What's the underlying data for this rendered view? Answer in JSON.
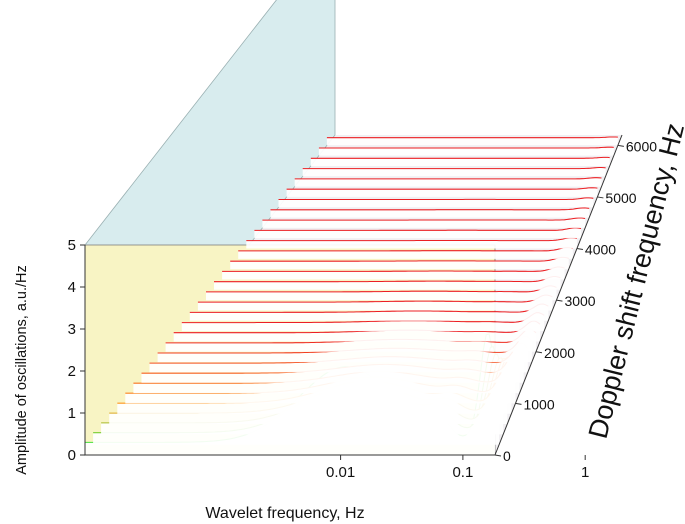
{
  "chart_data": {
    "type": "area",
    "projection": "3d-waterfall",
    "xlabel": "Wavelet frequency, Hz",
    "ylabel": "Amplitude of oscillations, a.u./Hz",
    "zlabel": "Doppler shift frequency, Hz",
    "x_scale": "log",
    "x_ticks": [
      "0.01",
      "0.1",
      "1"
    ],
    "y_ticks": [
      "0",
      "1",
      "2",
      "3",
      "4",
      "5"
    ],
    "z_ticks": [
      "0",
      "1000",
      "2000",
      "3000",
      "4000",
      "5000",
      "6000"
    ],
    "xlim": [
      0.009,
      2
    ],
    "ylim": [
      0,
      5
    ],
    "zlim": [
      0,
      6200
    ],
    "grid": false,
    "series_step_hz": 200,
    "series_count": 31,
    "colors": {
      "back_wall": "#f8f4c4",
      "side_wall": "#d8ecee",
      "floor": "#f1eff2",
      "line_near": "#ec1f23",
      "line_mid": "#ff9a1a",
      "line_far": "#46e03a",
      "axis": "#333333"
    }
  }
}
